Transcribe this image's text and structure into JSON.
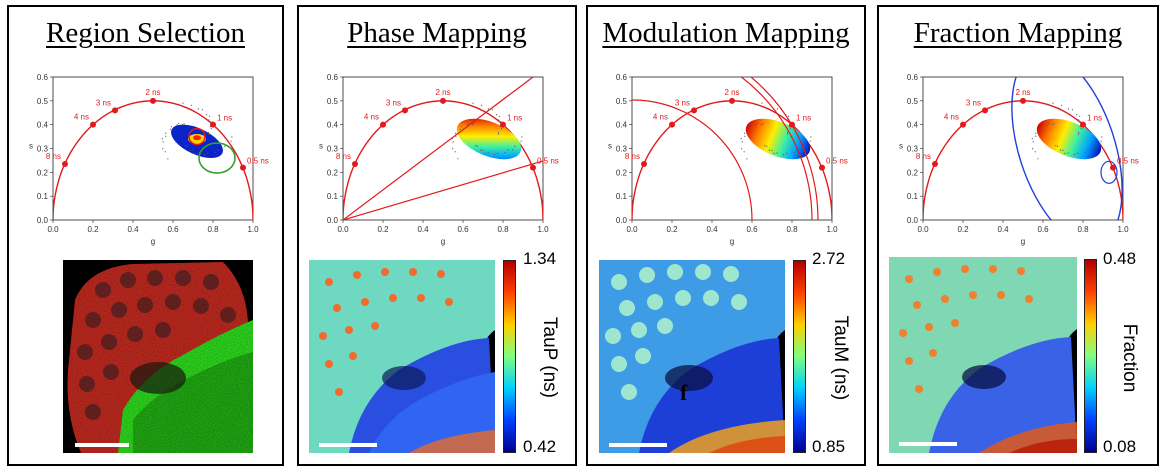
{
  "panels": [
    {
      "title": "Region Selection"
    },
    {
      "title": "Phase Mapping",
      "colorbar": {
        "label": "TauP (ns)",
        "max": "1.34",
        "min": "0.42"
      }
    },
    {
      "title": "Modulation Mapping",
      "colorbar": {
        "label": "TauM (ns)",
        "max": "2.72",
        "min": "0.85"
      }
    },
    {
      "title": "Fraction Mapping",
      "colorbar": {
        "label": "Fraction",
        "max": "0.48",
        "min": "0.08"
      }
    }
  ],
  "phasor": {
    "xlabel": "g",
    "ylabel": "s",
    "xticks": [
      "0.0",
      "0.2",
      "0.4",
      "0.6",
      "0.8",
      "1.0"
    ],
    "yticks": [
      "0.0",
      "0.1",
      "0.2",
      "0.3",
      "0.4",
      "0.5",
      "0.6"
    ],
    "lifetime_labels": [
      "8 ns",
      "4 ns",
      "3 ns",
      "2 ns",
      "1 ns",
      "0.5 ns"
    ]
  },
  "annotations": {
    "modulation_marker": "f"
  },
  "colors": {
    "semicircle": "#e31a1c",
    "selection_red": "#e31a1c",
    "selection_green": "#33a02c",
    "fraction_line": "#1f3fd6"
  }
}
